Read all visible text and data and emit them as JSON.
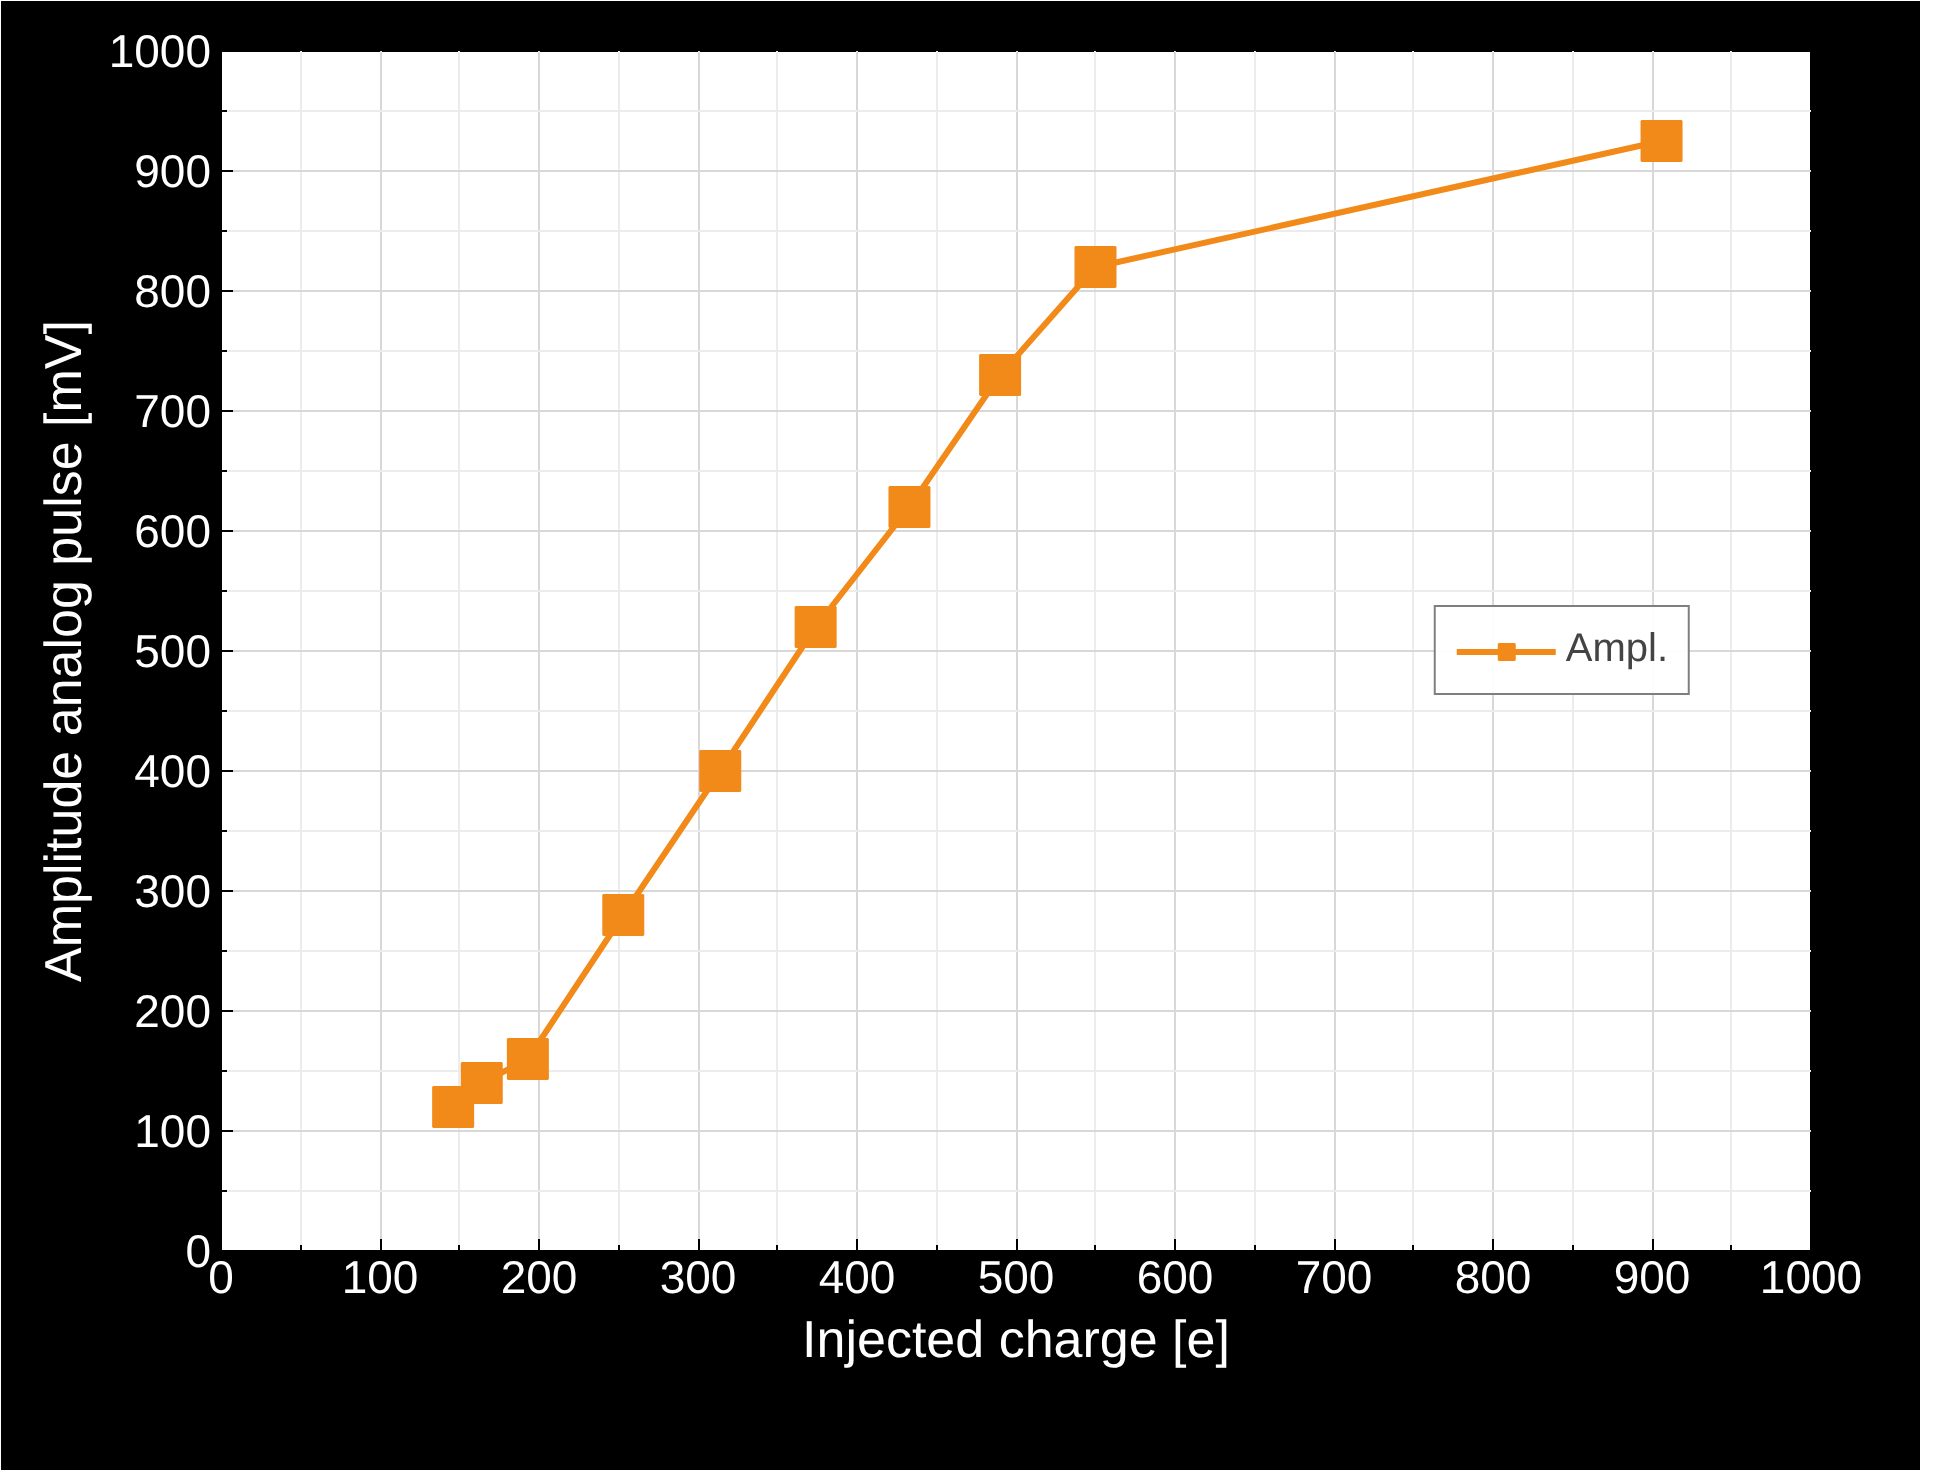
{
  "chart_data": {
    "type": "line",
    "xlabel": "Injected charge [e]",
    "ylabel": "Amplitude analog pulse [mV]",
    "x": [
      146,
      164,
      193,
      253,
      314,
      374,
      433,
      490,
      550,
      906
    ],
    "series": [
      {
        "name": "Ampl.",
        "color": "#f28a1a",
        "values": [
          120,
          140,
          160,
          280,
          400,
          520,
          620,
          730,
          820,
          925
        ]
      }
    ],
    "xlim": [
      0,
      1000
    ],
    "ylim": [
      0,
      1000
    ],
    "xticks": [
      0,
      100,
      200,
      300,
      400,
      500,
      600,
      700,
      800,
      900,
      1000
    ],
    "yticks": [
      0,
      100,
      200,
      300,
      400,
      500,
      600,
      700,
      800,
      900,
      1000
    ],
    "grid": true,
    "legend": "right",
    "marker": "square",
    "line_style": "solid"
  }
}
